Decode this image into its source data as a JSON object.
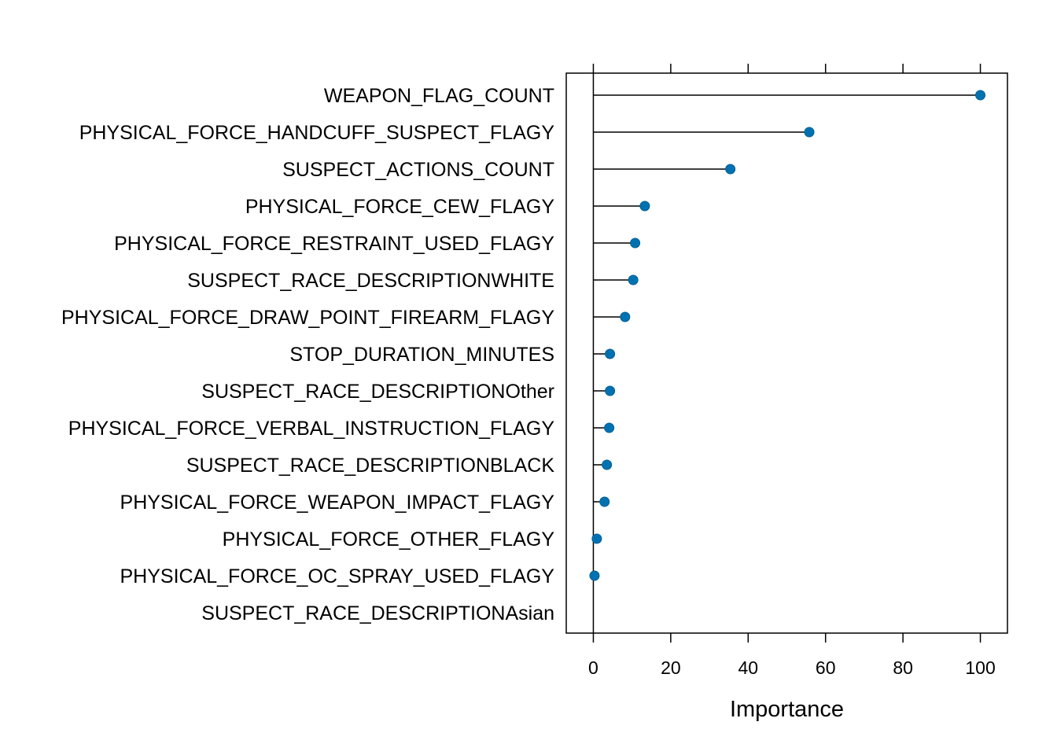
{
  "chart_data": {
    "type": "dotplot",
    "categories": [
      "WEAPON_FLAG_COUNT",
      "PHYSICAL_FORCE_HANDCUFF_SUSPECT_FLAGY",
      "SUSPECT_ACTIONS_COUNT",
      "PHYSICAL_FORCE_CEW_FLAGY",
      "PHYSICAL_FORCE_RESTRAINT_USED_FLAGY",
      "SUSPECT_RACE_DESCRIPTIONWHITE",
      "PHYSICAL_FORCE_DRAW_POINT_FIREARM_FLAGY",
      "STOP_DURATION_MINUTES",
      "SUSPECT_RACE_DESCRIPTIONOther",
      "PHYSICAL_FORCE_VERBAL_INSTRUCTION_FLAGY",
      "SUSPECT_RACE_DESCRIPTIONBLACK",
      "PHYSICAL_FORCE_WEAPON_IMPACT_FLAGY",
      "PHYSICAL_FORCE_OTHER_FLAGY",
      "PHYSICAL_FORCE_OC_SPRAY_USED_FLAGY",
      "SUSPECT_RACE_DESCRIPTIONAsian"
    ],
    "values": [
      100,
      55.8,
      35.4,
      13.3,
      10.8,
      10.3,
      8.2,
      4.3,
      4.3,
      4.1,
      3.5,
      2.9,
      0.9,
      0.3,
      null
    ],
    "xlabel": "Importance",
    "xlim": [
      -7,
      107
    ],
    "xticks": [
      0,
      20,
      40,
      60,
      80,
      100
    ],
    "reference_line": 0,
    "point_color": "#0072B2",
    "grid": false
  }
}
